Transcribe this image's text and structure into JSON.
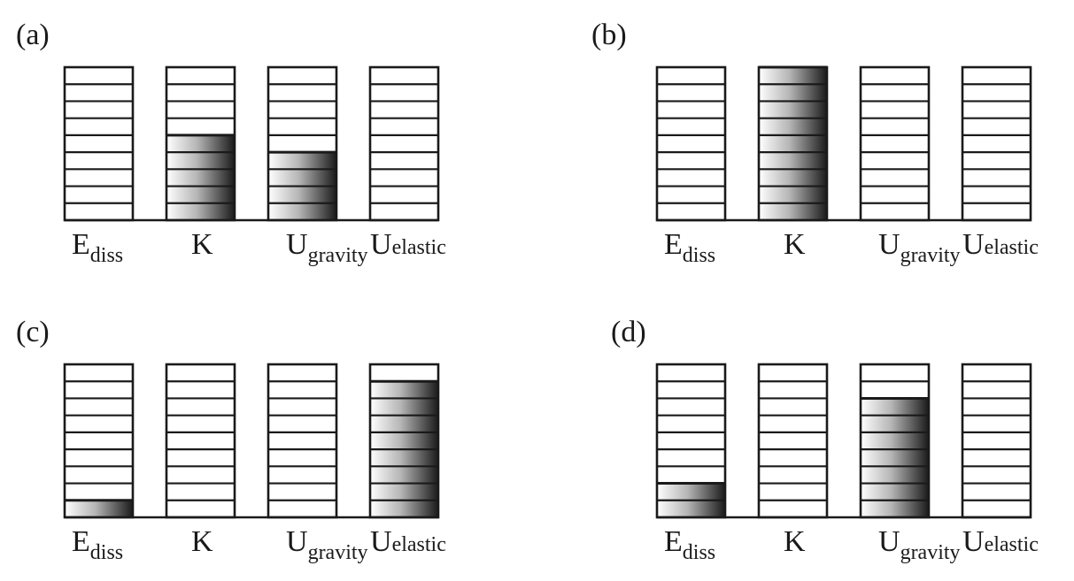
{
  "panels": [
    {
      "label": "(a)",
      "bars": [
        {
          "name": "E",
          "sub": "diss",
          "filled_levels": 0
        },
        {
          "name": "K",
          "sub": "",
          "filled_levels": 5
        },
        {
          "name": "U",
          "sub": "gravity",
          "filled_levels": 4
        },
        {
          "name": "Uelastic",
          "sub": "",
          "filled_levels": 0
        }
      ]
    },
    {
      "label": "(b)",
      "bars": [
        {
          "name": "E",
          "sub": "diss",
          "filled_levels": 0
        },
        {
          "name": "K",
          "sub": "",
          "filled_levels": 9
        },
        {
          "name": "U",
          "sub": "gravity",
          "filled_levels": 0
        },
        {
          "name": "Uelastic",
          "sub": "",
          "filled_levels": 0
        }
      ]
    },
    {
      "label": "(c)",
      "bars": [
        {
          "name": "E",
          "sub": "diss",
          "filled_levels": 1
        },
        {
          "name": "K",
          "sub": "",
          "filled_levels": 0
        },
        {
          "name": "U",
          "sub": "gravity",
          "filled_levels": 0
        },
        {
          "name": "Uelastic",
          "sub": "",
          "filled_levels": 8
        }
      ]
    },
    {
      "label": "(d)",
      "bars": [
        {
          "name": "E",
          "sub": "diss",
          "filled_levels": 2
        },
        {
          "name": "K",
          "sub": "",
          "filled_levels": 0
        },
        {
          "name": "U",
          "sub": "gravity",
          "filled_levels": 7
        },
        {
          "name": "Uelastic",
          "sub": "",
          "filled_levels": 0
        }
      ]
    }
  ],
  "total_levels": 9,
  "colors": {
    "stroke": "#1a1a1a",
    "fill_light": "#ffffff",
    "fill_dark": "#1a1a1a"
  }
}
